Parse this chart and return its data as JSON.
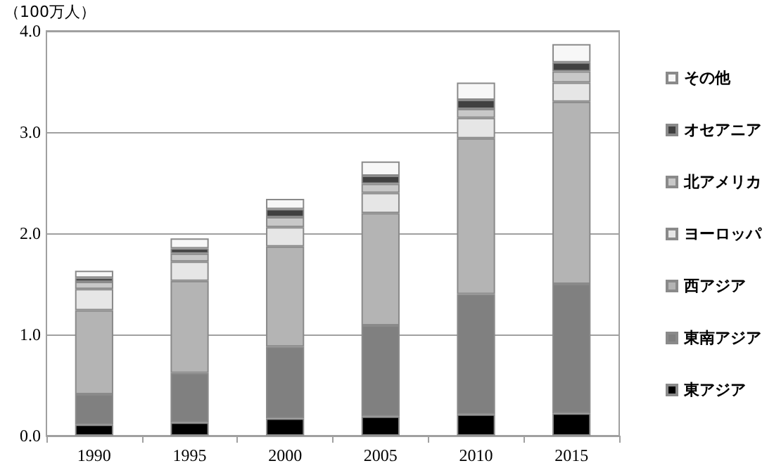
{
  "chart_data": {
    "type": "bar",
    "stacked": true,
    "ylabel": "（100万人）",
    "categories": [
      "1990",
      "1995",
      "2000",
      "2005",
      "2010",
      "2015"
    ],
    "series": [
      {
        "name": "東アジア",
        "color": "#000000",
        "values": [
          0.11,
          0.13,
          0.17,
          0.19,
          0.21,
          0.22
        ]
      },
      {
        "name": "東南アジア",
        "color": "#808080",
        "values": [
          0.3,
          0.49,
          0.71,
          0.9,
          1.19,
          1.28
        ]
      },
      {
        "name": "西アジア",
        "color": "#b4b4b4",
        "values": [
          0.83,
          0.91,
          0.99,
          1.11,
          1.54,
          1.8
        ]
      },
      {
        "name": "ヨーロッパ",
        "color": "#e6e6e6",
        "values": [
          0.21,
          0.19,
          0.19,
          0.2,
          0.2,
          0.19
        ]
      },
      {
        "name": "北アメリカ",
        "color": "#c8c8c8",
        "values": [
          0.07,
          0.08,
          0.1,
          0.09,
          0.09,
          0.11
        ]
      },
      {
        "name": "オセアニア",
        "color": "#404040",
        "values": [
          0.04,
          0.05,
          0.08,
          0.08,
          0.09,
          0.09
        ]
      },
      {
        "name": "その他",
        "color": "#f7f7f7",
        "values": [
          0.07,
          0.1,
          0.1,
          0.14,
          0.17,
          0.18
        ]
      }
    ],
    "ylim": [
      0,
      4
    ],
    "yticks": [
      {
        "value": 0,
        "label": "0.0"
      },
      {
        "value": 1,
        "label": "1.0"
      },
      {
        "value": 2,
        "label": "2.0"
      },
      {
        "value": 3,
        "label": "3.0"
      },
      {
        "value": 4,
        "label": "4.0"
      }
    ],
    "grid": "y",
    "legend": "right"
  }
}
